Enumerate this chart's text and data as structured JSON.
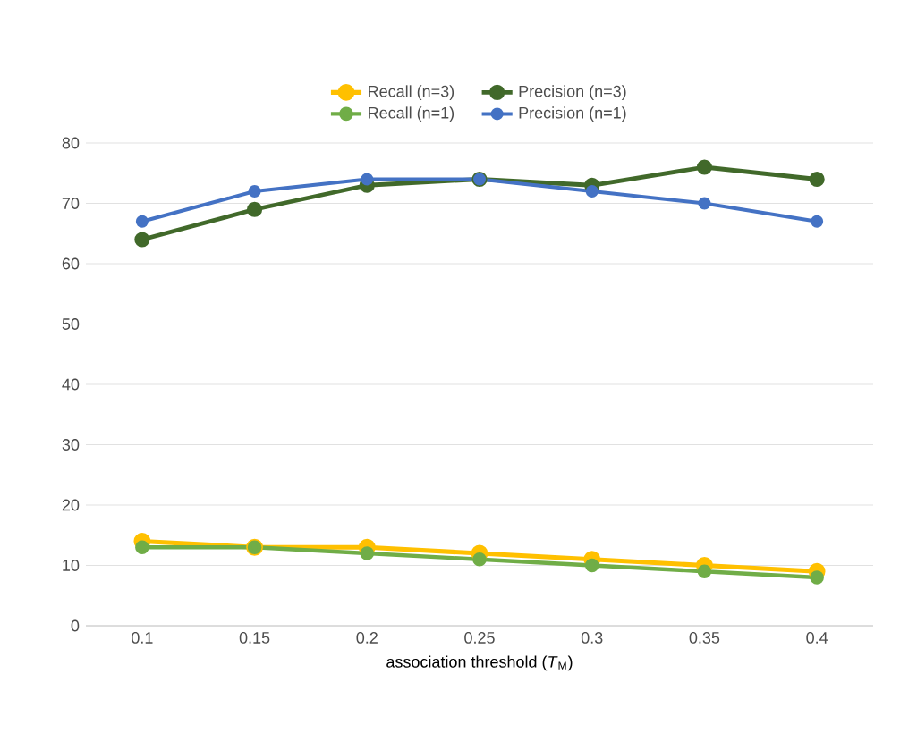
{
  "chart_data": {
    "type": "line",
    "xlabel": "association threshold (*T*$_{M}$)",
    "categories": [
      "0.1",
      "0.15",
      "0.2",
      "0.25",
      "0.3",
      "0.35",
      "0.4"
    ],
    "series": [
      {
        "name": "Recall (n=3)",
        "color": "#ffc000",
        "values": [
          14,
          13,
          13,
          12,
          11,
          10,
          9
        ]
      },
      {
        "name": "Precision (n=3)",
        "color": "#41692a",
        "values": [
          64,
          69,
          73,
          74,
          73,
          76,
          74
        ]
      },
      {
        "name": "Recall (n=1)",
        "color": "#70ad47",
        "values": [
          13,
          13,
          12,
          11,
          10,
          9,
          8
        ]
      },
      {
        "name": "Precision (n=1)",
        "color": "#4472c4",
        "values": [
          67,
          72,
          74,
          74,
          72,
          70,
          67
        ]
      }
    ],
    "ylim": [
      0,
      80
    ],
    "yticks": [
      0,
      10,
      20,
      30,
      40,
      50,
      60,
      70,
      80
    ],
    "grid": "y",
    "legend": "top",
    "marker": "circle",
    "line_style": "solid"
  }
}
